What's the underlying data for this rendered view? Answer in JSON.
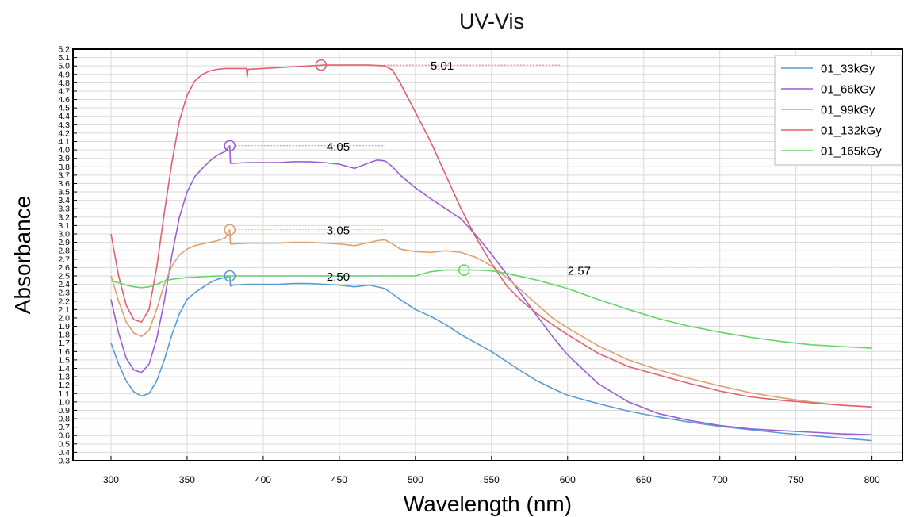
{
  "chart_data": {
    "type": "line",
    "title": "UV-Vis",
    "xlabel": "Wavelength (nm)",
    "ylabel": "Absorbance",
    "xlim": [
      275,
      820
    ],
    "ylim": [
      0.3,
      5.2
    ],
    "xticks": [
      300,
      350,
      400,
      450,
      500,
      550,
      600,
      650,
      700,
      750,
      800
    ],
    "yticks": [
      0.3,
      0.4,
      0.5,
      0.6,
      0.7,
      0.8,
      0.9,
      1.0,
      1.1,
      1.2,
      1.3,
      1.4,
      1.5,
      1.6,
      1.7,
      1.8,
      1.9,
      2.0,
      2.1,
      2.2,
      2.3,
      2.4,
      2.5,
      2.6,
      2.7,
      2.8,
      2.9,
      3.0,
      3.1,
      3.2,
      3.3,
      3.4,
      3.5,
      3.6,
      3.7,
      3.8,
      3.9,
      4.0,
      4.1,
      4.2,
      4.3,
      4.4,
      4.5,
      4.6,
      4.7,
      4.8,
      4.9,
      5.0,
      5.1,
      5.2
    ],
    "grid": true,
    "legend_position": "top-right",
    "series": [
      {
        "name": "01_33kGy",
        "color": "#5b9bd5",
        "x": [
          300,
          305,
          310,
          315,
          320,
          325,
          330,
          335,
          340,
          345,
          350,
          355,
          360,
          365,
          370,
          375,
          378,
          378.5,
          380,
          390,
          400,
          410,
          420,
          430,
          440,
          450,
          460,
          470,
          480,
          490,
          500,
          510,
          520,
          530,
          540,
          550,
          560,
          570,
          580,
          590,
          600,
          620,
          640,
          660,
          680,
          700,
          720,
          740,
          760,
          780,
          800
        ],
        "y": [
          1.7,
          1.45,
          1.25,
          1.12,
          1.07,
          1.1,
          1.25,
          1.5,
          1.8,
          2.05,
          2.22,
          2.3,
          2.36,
          2.42,
          2.46,
          2.48,
          2.5,
          2.38,
          2.39,
          2.4,
          2.4,
          2.4,
          2.41,
          2.41,
          2.4,
          2.39,
          2.37,
          2.39,
          2.35,
          2.22,
          2.1,
          2.02,
          1.92,
          1.8,
          1.7,
          1.6,
          1.48,
          1.36,
          1.25,
          1.16,
          1.08,
          0.98,
          0.89,
          0.82,
          0.76,
          0.71,
          0.67,
          0.63,
          0.6,
          0.57,
          0.54
        ]
      },
      {
        "name": "01_66kGy",
        "color": "#9a5fd6",
        "x": [
          300,
          305,
          310,
          315,
          320,
          325,
          330,
          335,
          340,
          345,
          350,
          355,
          360,
          365,
          370,
          375,
          378,
          378.5,
          380,
          390,
          400,
          410,
          420,
          430,
          440,
          450,
          460,
          470,
          475,
          480,
          485,
          490,
          500,
          510,
          520,
          530,
          540,
          550,
          560,
          570,
          580,
          590,
          600,
          620,
          640,
          660,
          680,
          700,
          720,
          740,
          760,
          780,
          800
        ],
        "y": [
          2.22,
          1.82,
          1.52,
          1.38,
          1.35,
          1.45,
          1.75,
          2.2,
          2.75,
          3.2,
          3.5,
          3.68,
          3.78,
          3.87,
          3.94,
          3.98,
          4.05,
          3.84,
          3.84,
          3.85,
          3.85,
          3.85,
          3.86,
          3.86,
          3.85,
          3.83,
          3.78,
          3.85,
          3.88,
          3.87,
          3.8,
          3.7,
          3.55,
          3.42,
          3.3,
          3.18,
          2.98,
          2.76,
          2.52,
          2.27,
          2.02,
          1.78,
          1.56,
          1.22,
          1.0,
          0.86,
          0.78,
          0.72,
          0.68,
          0.66,
          0.64,
          0.62,
          0.61
        ]
      },
      {
        "name": "01_99kGy",
        "color": "#e0a070",
        "x": [
          300,
          305,
          310,
          315,
          320,
          325,
          330,
          335,
          340,
          345,
          350,
          355,
          360,
          365,
          370,
          375,
          378,
          378.5,
          380,
          390,
          400,
          410,
          420,
          430,
          440,
          450,
          460,
          470,
          475,
          480,
          485,
          490,
          500,
          510,
          520,
          530,
          540,
          550,
          560,
          570,
          580,
          590,
          600,
          620,
          640,
          660,
          680,
          700,
          720,
          740,
          760,
          780,
          800
        ],
        "y": [
          2.5,
          2.2,
          1.95,
          1.82,
          1.78,
          1.85,
          2.1,
          2.4,
          2.62,
          2.75,
          2.82,
          2.86,
          2.88,
          2.9,
          2.92,
          2.95,
          3.05,
          2.88,
          2.88,
          2.89,
          2.89,
          2.89,
          2.9,
          2.9,
          2.89,
          2.88,
          2.86,
          2.9,
          2.92,
          2.93,
          2.88,
          2.82,
          2.79,
          2.78,
          2.8,
          2.78,
          2.72,
          2.62,
          2.48,
          2.32,
          2.16,
          2.0,
          1.88,
          1.67,
          1.5,
          1.38,
          1.28,
          1.19,
          1.11,
          1.05,
          1.0,
          0.96,
          0.94
        ]
      },
      {
        "name": "01_132kGy",
        "color": "#e06070",
        "x": [
          300,
          305,
          310,
          315,
          320,
          325,
          330,
          335,
          340,
          345,
          350,
          355,
          360,
          365,
          370,
          375,
          380,
          385,
          389,
          389.5,
          390,
          400,
          410,
          420,
          430,
          440,
          450,
          460,
          470,
          480,
          485,
          490,
          500,
          510,
          520,
          530,
          540,
          550,
          560,
          570,
          580,
          590,
          600,
          620,
          640,
          660,
          680,
          700,
          720,
          740,
          760,
          780,
          800
        ],
        "y": [
          3.0,
          2.5,
          2.15,
          1.98,
          1.95,
          2.1,
          2.6,
          3.25,
          3.85,
          4.35,
          4.65,
          4.82,
          4.9,
          4.94,
          4.96,
          4.97,
          4.97,
          4.97,
          4.97,
          4.87,
          4.96,
          4.97,
          4.98,
          4.99,
          5.0,
          5.01,
          5.01,
          5.01,
          5.01,
          5.0,
          4.95,
          4.8,
          4.45,
          4.1,
          3.7,
          3.3,
          2.95,
          2.65,
          2.38,
          2.2,
          2.05,
          1.92,
          1.8,
          1.58,
          1.42,
          1.32,
          1.22,
          1.13,
          1.06,
          1.02,
          0.99,
          0.96,
          0.94
        ]
      },
      {
        "name": "01_165kGy",
        "color": "#66d466",
        "x": [
          300,
          305,
          310,
          315,
          320,
          325,
          330,
          335,
          340,
          350,
          360,
          370,
          380,
          390,
          400,
          420,
          440,
          460,
          480,
          500,
          510,
          520,
          530,
          540,
          550,
          560,
          580,
          600,
          620,
          640,
          660,
          680,
          700,
          720,
          740,
          760,
          780,
          800
        ],
        "y": [
          2.44,
          2.42,
          2.39,
          2.37,
          2.36,
          2.37,
          2.4,
          2.44,
          2.46,
          2.48,
          2.49,
          2.5,
          2.5,
          2.5,
          2.5,
          2.5,
          2.5,
          2.5,
          2.5,
          2.5,
          2.55,
          2.57,
          2.57,
          2.57,
          2.56,
          2.53,
          2.45,
          2.35,
          2.22,
          2.1,
          1.99,
          1.9,
          1.83,
          1.77,
          1.72,
          1.68,
          1.66,
          1.64
        ]
      }
    ],
    "annotations": [
      {
        "text": "5.01",
        "x": 438,
        "y": 5.01,
        "color": "#e06070",
        "line_to": 595
      },
      {
        "text": "4.05",
        "x": 378,
        "y": 4.05,
        "color": "#9a5fd6",
        "line_to": 480
      },
      {
        "text": "3.05",
        "x": 378,
        "y": 3.05,
        "color": "#e0a070",
        "line_to": 480
      },
      {
        "text": "2.50",
        "x": 378,
        "y": 2.5,
        "color": "#5b9bd5",
        "line_to": 480
      },
      {
        "text": "2.57",
        "x": 532,
        "y": 2.57,
        "color": "#66d466",
        "line_to": 780
      }
    ]
  }
}
